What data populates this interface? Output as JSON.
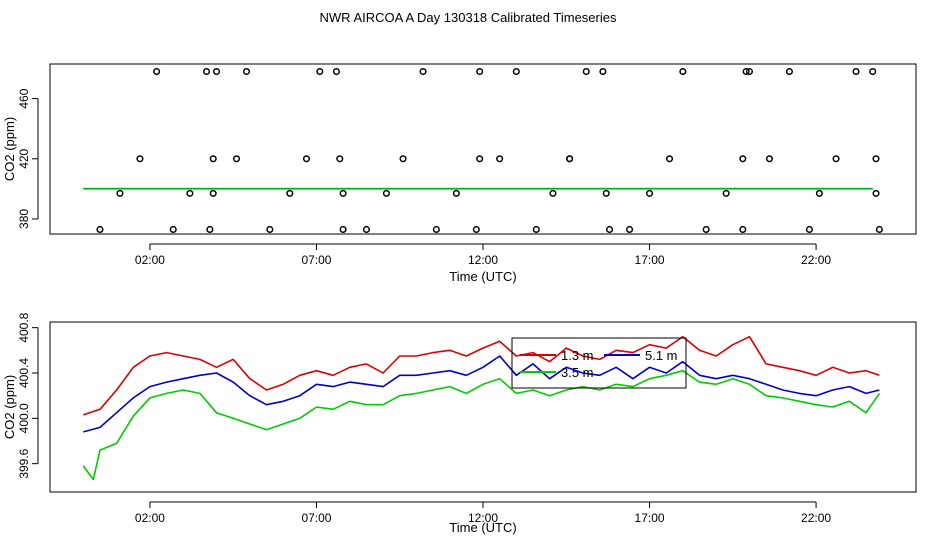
{
  "title": "NWR AIRCOA A  Day 130318  Calibrated Timeseries",
  "chart_data": [
    {
      "type": "scatter",
      "xlabel": "Time (UTC)",
      "ylabel": "CO2 (ppm)",
      "xlim": [
        -1.0,
        25.0
      ],
      "ylim": [
        370,
        483
      ],
      "xticks": [
        2,
        7,
        12,
        17,
        22
      ],
      "xtick_labels": [
        "02:00",
        "07:00",
        "12:00",
        "17:00",
        "22:00"
      ],
      "yticks": [
        380,
        420,
        460
      ],
      "ytick_labels": [
        "380",
        "420",
        "460"
      ],
      "points": {
        "x": [
          0.5,
          1.1,
          1.7,
          2.2,
          2.7,
          3.2,
          3.7,
          3.8,
          3.9,
          3.9,
          4.0,
          4.6,
          4.9,
          5.6,
          6.2,
          6.7,
          7.1,
          7.6,
          7.7,
          7.8,
          7.8,
          8.5,
          9.1,
          9.6,
          10.2,
          10.6,
          11.2,
          11.8,
          11.9,
          11.9,
          12.5,
          13.0,
          13.6,
          14.1,
          14.6,
          14.6,
          15.1,
          15.6,
          15.7,
          15.8,
          16.4,
          17.0,
          17.6,
          18.0,
          18.7,
          19.3,
          19.8,
          19.8,
          19.9,
          20.0,
          20.6,
          21.2,
          21.8,
          22.1,
          22.6,
          23.2,
          23.7,
          23.8,
          23.8,
          23.9
        ],
        "y": [
          373,
          397,
          420,
          478,
          373,
          397,
          478,
          373,
          397,
          420,
          478,
          420,
          478,
          373,
          397,
          420,
          478,
          478,
          420,
          397,
          373,
          373,
          397,
          420,
          478,
          373,
          397,
          373,
          420,
          478,
          420,
          478,
          373,
          397,
          420,
          420,
          478,
          478,
          397,
          373,
          373,
          397,
          420,
          478,
          373,
          397,
          373,
          420,
          478,
          478,
          420,
          478,
          373,
          397,
          420,
          478,
          478,
          420,
          397,
          373
        ]
      },
      "baseline_series": [
        {
          "name": "",
          "color": "#0000cc",
          "values_y": 400.2,
          "x_range": [
            0.0,
            23.7
          ]
        },
        {
          "name": "",
          "color": "#00cc00",
          "values_y": 400.0,
          "x_range": [
            0.0,
            23.7
          ]
        }
      ]
    },
    {
      "type": "line",
      "xlabel": "Time (UTC)",
      "ylabel": "CO2 (ppm)",
      "xlim": [
        -1.0,
        25.0
      ],
      "ylim": [
        399.35,
        400.85
      ],
      "xticks": [
        2,
        7,
        12,
        17,
        22
      ],
      "xtick_labels": [
        "02:00",
        "07:00",
        "12:00",
        "17:00",
        "22:00"
      ],
      "yticks": [
        399.6,
        400.0,
        400.4,
        400.8
      ],
      "ytick_labels": [
        "399.6",
        "400.0",
        "400.4",
        "400.8"
      ],
      "legend": {
        "placement": "top-center",
        "entries": [
          {
            "label": "1.3 m",
            "color": "#dd0000"
          },
          {
            "label": "5.1 m",
            "color": "#0000cc"
          },
          {
            "label": "3.5 m",
            "color": "#00cc00"
          }
        ]
      },
      "series": [
        {
          "name": "1.3 m",
          "color": "#dd0000",
          "x": [
            0.0,
            0.5,
            1.0,
            1.5,
            2.0,
            2.5,
            3.0,
            3.5,
            4.0,
            4.5,
            5.0,
            5.5,
            6.0,
            6.5,
            7.0,
            7.5,
            8.0,
            8.5,
            9.0,
            9.5,
            10.0,
            10.5,
            11.0,
            11.5,
            12.0,
            12.5,
            13.0,
            13.5,
            14.0,
            14.5,
            15.0,
            15.5,
            16.0,
            16.5,
            17.0,
            17.5,
            18.0,
            18.5,
            19.0,
            19.5,
            20.0,
            20.5,
            21.0,
            21.5,
            22.0,
            22.5,
            23.0,
            23.5,
            23.9
          ],
          "y": [
            400.03,
            400.08,
            400.25,
            400.45,
            400.55,
            400.58,
            400.55,
            400.52,
            400.45,
            400.52,
            400.35,
            400.25,
            400.3,
            400.38,
            400.42,
            400.38,
            400.45,
            400.48,
            400.4,
            400.55,
            400.55,
            400.58,
            400.6,
            400.55,
            400.62,
            400.68,
            400.55,
            400.58,
            400.5,
            400.62,
            400.55,
            400.52,
            400.6,
            400.58,
            400.65,
            400.62,
            400.72,
            400.6,
            400.55,
            400.65,
            400.72,
            400.48,
            400.45,
            400.42,
            400.38,
            400.45,
            400.4,
            400.42,
            400.38
          ]
        },
        {
          "name": "5.1 m",
          "color": "#0000cc",
          "x": [
            0.0,
            0.5,
            1.0,
            1.5,
            2.0,
            2.5,
            3.0,
            3.5,
            4.0,
            4.5,
            5.0,
            5.5,
            6.0,
            6.5,
            7.0,
            7.5,
            8.0,
            8.5,
            9.0,
            9.5,
            10.0,
            10.5,
            11.0,
            11.5,
            12.0,
            12.5,
            13.0,
            13.5,
            14.0,
            14.5,
            15.0,
            15.5,
            16.0,
            16.5,
            17.0,
            17.5,
            18.0,
            18.5,
            19.0,
            19.5,
            20.0,
            20.5,
            21.0,
            21.5,
            22.0,
            22.5,
            23.0,
            23.5,
            23.9
          ],
          "y": [
            399.88,
            399.92,
            400.05,
            400.18,
            400.28,
            400.32,
            400.35,
            400.38,
            400.4,
            400.32,
            400.2,
            400.12,
            400.15,
            400.2,
            400.3,
            400.28,
            400.32,
            400.3,
            400.28,
            400.38,
            400.38,
            400.4,
            400.42,
            400.38,
            400.45,
            400.55,
            400.38,
            400.48,
            400.35,
            400.45,
            400.4,
            400.38,
            400.45,
            400.35,
            400.45,
            400.4,
            400.5,
            400.38,
            400.35,
            400.38,
            400.35,
            400.3,
            400.25,
            400.22,
            400.2,
            400.25,
            400.28,
            400.22,
            400.25
          ]
        },
        {
          "name": "3.5 m",
          "color": "#00cc00",
          "x": [
            0.0,
            0.3,
            0.5,
            1.0,
            1.5,
            2.0,
            2.5,
            3.0,
            3.5,
            4.0,
            4.5,
            5.0,
            5.5,
            6.0,
            6.5,
            7.0,
            7.5,
            8.0,
            8.5,
            9.0,
            9.5,
            10.0,
            10.5,
            11.0,
            11.5,
            12.0,
            12.5,
            13.0,
            13.5,
            14.0,
            14.5,
            15.0,
            15.5,
            16.0,
            16.5,
            17.0,
            17.5,
            18.0,
            18.5,
            19.0,
            19.5,
            20.0,
            20.5,
            21.0,
            21.5,
            22.0,
            22.5,
            23.0,
            23.5,
            23.9
          ],
          "y": [
            399.58,
            399.46,
            399.72,
            399.78,
            400.02,
            400.18,
            400.22,
            400.25,
            400.22,
            400.05,
            400.0,
            399.95,
            399.9,
            399.95,
            400.0,
            400.1,
            400.08,
            400.15,
            400.12,
            400.12,
            400.2,
            400.22,
            400.25,
            400.28,
            400.22,
            400.3,
            400.35,
            400.22,
            400.25,
            400.2,
            400.25,
            400.28,
            400.25,
            400.3,
            400.28,
            400.35,
            400.38,
            400.42,
            400.32,
            400.3,
            400.35,
            400.3,
            400.2,
            400.18,
            400.15,
            400.12,
            400.1,
            400.15,
            400.05,
            400.22
          ]
        }
      ]
    }
  ]
}
